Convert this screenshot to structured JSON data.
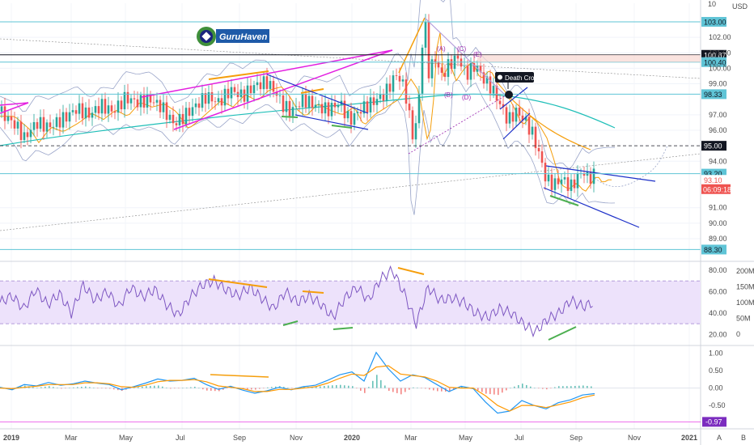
{
  "brand": {
    "name": "GuruHaven",
    "icon": "guruhaven-logo-icon"
  },
  "currency": "USD",
  "colors": {
    "candle_up": "#26a69a",
    "candle_down": "#ef5350",
    "cyan_level": "#5fc4d6",
    "magenta_trend": "#e31ee0",
    "orange_line": "#f59e0b",
    "green_line": "#4caf50",
    "blue_trend": "#1c2fc8",
    "bollinger": "#9aa5c9",
    "ma_teal": "#1fbfb8",
    "rsi_line": "#7e57c2",
    "rsi_band": "#ede2fb",
    "macd_line": "#2196f3",
    "signal_line": "#ff9800",
    "tag_cyan": "#5fc4d6",
    "tag_red": "#ef5350",
    "tag_black": "#131722"
  },
  "chart_data": [
    {
      "type": "candlestick",
      "title": "",
      "ylim": [
        87.8,
        104.2
      ],
      "x_ticks": [
        "2019",
        "Mar",
        "May",
        "Jul",
        "Sep",
        "Nov",
        "2020",
        "Mar",
        "May",
        "Jul",
        "Sep",
        "Nov",
        "2021"
      ],
      "y_ticks": [
        "102.00",
        "101.00",
        "100.00",
        "99.00",
        "97.00",
        "96.00",
        "94.00",
        "91.00",
        "90.00",
        "89.00"
      ],
      "close_path": [
        [
          0,
          97.2
        ],
        [
          20,
          96.3
        ],
        [
          30,
          95.5
        ],
        [
          45,
          96.5
        ],
        [
          60,
          96.2
        ],
        [
          80,
          96.8
        ],
        [
          95,
          97.4
        ],
        [
          110,
          97.0
        ],
        [
          125,
          97.6
        ],
        [
          140,
          97.2
        ],
        [
          155,
          98.1
        ],
        [
          170,
          97.8
        ],
        [
          185,
          98.0
        ],
        [
          200,
          97.5
        ],
        [
          215,
          96.4
        ],
        [
          225,
          96.8
        ],
        [
          240,
          97.5
        ],
        [
          255,
          98.2
        ],
        [
          270,
          97.8
        ],
        [
          285,
          98.6
        ],
        [
          300,
          98.2
        ],
        [
          315,
          98.9
        ],
        [
          330,
          99.1
        ],
        [
          340,
          98.5
        ],
        [
          350,
          97.6
        ],
        [
          360,
          97.2
        ],
        [
          375,
          98.0
        ],
        [
          390,
          97.6
        ],
        [
          405,
          97.3
        ],
        [
          420,
          97.8
        ],
        [
          432,
          96.6
        ],
        [
          445,
          97.3
        ],
        [
          460,
          97.8
        ],
        [
          475,
          98.3
        ],
        [
          490,
          99.6
        ],
        [
          500,
          98.8
        ],
        [
          508,
          96.2
        ],
        [
          512,
          95.3
        ],
        [
          518,
          98.3
        ],
        [
          522,
          101.6
        ],
        [
          526,
          102.6
        ],
        [
          530,
          99.8
        ],
        [
          538,
          100.6
        ],
        [
          546,
          99.5
        ],
        [
          556,
          100.3
        ],
        [
          566,
          100.7
        ],
        [
          576,
          99.6
        ],
        [
          588,
          100.2
        ],
        [
          598,
          99.3
        ],
        [
          608,
          98.7
        ],
        [
          618,
          97.7
        ],
        [
          628,
          96.6
        ],
        [
          638,
          97.2
        ],
        [
          648,
          96.7
        ],
        [
          658,
          95.8
        ],
        [
          668,
          94.2
        ],
        [
          675,
          92.8
        ],
        [
          685,
          92.5
        ],
        [
          695,
          92.9
        ],
        [
          705,
          92.3
        ],
        [
          712,
          92.8
        ],
        [
          720,
          93.4
        ],
        [
          727,
          92.9
        ],
        [
          734,
          93.1
        ]
      ],
      "horizontal_levels": [
        {
          "value": 103.0,
          "label": "103.00",
          "style": "cyan-tag"
        },
        {
          "value": 100.87,
          "label": "100.87",
          "style": "black-tag"
        },
        {
          "value": 100.4,
          "label": "100.40",
          "style": "cyan-tag"
        },
        {
          "value": 98.33,
          "label": "98.33",
          "style": "cyan-tag"
        },
        {
          "value": 95.0,
          "label": "95.00",
          "style": "black-tag-dashed"
        },
        {
          "value": 93.2,
          "label": "93.20",
          "style": "cyan-tag"
        },
        {
          "value": 88.3,
          "label": "88.30",
          "style": "cyan-tag"
        }
      ],
      "price_tags": [
        {
          "value": 92.8,
          "label": "93.10",
          "style": "red-text"
        },
        {
          "value": 92.2,
          "label": "06:09:18",
          "style": "red-tag"
        }
      ],
      "annotations": [
        "(A)",
        "(C)",
        "(E)",
        "(B)",
        "(D)",
        "Death Cross"
      ]
    },
    {
      "type": "line",
      "series": [
        {
          "name": "",
          "values": [
            50,
            56,
            44,
            62,
            48,
            58,
            40,
            66,
            52,
            60,
            46,
            64,
            55,
            62,
            48,
            38,
            55,
            66,
            70,
            62,
            56,
            64,
            54,
            44,
            60,
            50,
            56,
            48,
            36,
            54,
            64,
            52,
            72,
            80,
            58,
            30,
            64,
            52,
            54,
            50,
            40,
            36,
            44,
            40,
            30,
            22,
            34,
            40,
            52,
            46,
            50
          ]
        }
      ],
      "ylim": [
        12,
        86
      ],
      "band": [
        30,
        70
      ],
      "y_ticks": [
        "80.00",
        "60.00",
        "40.00",
        "20.00"
      ],
      "volume_ticks": [
        "200M",
        "150M",
        "100M",
        "50M",
        "0"
      ]
    },
    {
      "type": "line",
      "series": [
        {
          "name": "",
          "values": [
            0.02,
            -0.05,
            0.1,
            0.06,
            0.16,
            0.08,
            0.12,
            0.2,
            0.14,
            0.1,
            -0.05,
            0.04,
            0.14,
            0.26,
            0.2,
            0.22,
            0.28,
            0.1,
            -0.04,
            0.05,
            -0.06,
            -0.15,
            -0.08,
            0.02,
            -0.05,
            0.04,
            0.08,
            0.22,
            0.38,
            0.46,
            0.2,
            1.02,
            0.55,
            0.2,
            0.38,
            0.3,
            0.1,
            -0.1,
            0.05,
            -0.02,
            -0.4,
            -0.72,
            -0.66,
            -0.36,
            -0.5,
            -0.6,
            -0.42,
            -0.34,
            -0.2,
            -0.16
          ]
        },
        {
          "name": "",
          "values": [
            0.0,
            -0.02,
            0.02,
            0.05,
            0.1,
            0.1,
            0.1,
            0.15,
            0.15,
            0.12,
            0.04,
            0.02,
            0.08,
            0.18,
            0.22,
            0.22,
            0.24,
            0.18,
            0.06,
            0.02,
            -0.02,
            -0.1,
            -0.1,
            -0.04,
            -0.04,
            0.0,
            0.04,
            0.14,
            0.28,
            0.4,
            0.36,
            0.6,
            0.64,
            0.4,
            0.36,
            0.32,
            0.2,
            0.02,
            0.0,
            0.0,
            -0.22,
            -0.5,
            -0.66,
            -0.5,
            -0.5,
            -0.56,
            -0.48,
            -0.4,
            -0.28,
            -0.2
          ]
        }
      ],
      "ylim": [
        -1.1,
        1.15
      ],
      "y_ticks": [
        "1.00",
        "0.50",
        "0.00",
        "-0.50"
      ],
      "value_tag": {
        "value": -0.97,
        "label": "-0.97"
      }
    }
  ],
  "footer": {
    "scale_a": "A",
    "scale_b": "B"
  }
}
